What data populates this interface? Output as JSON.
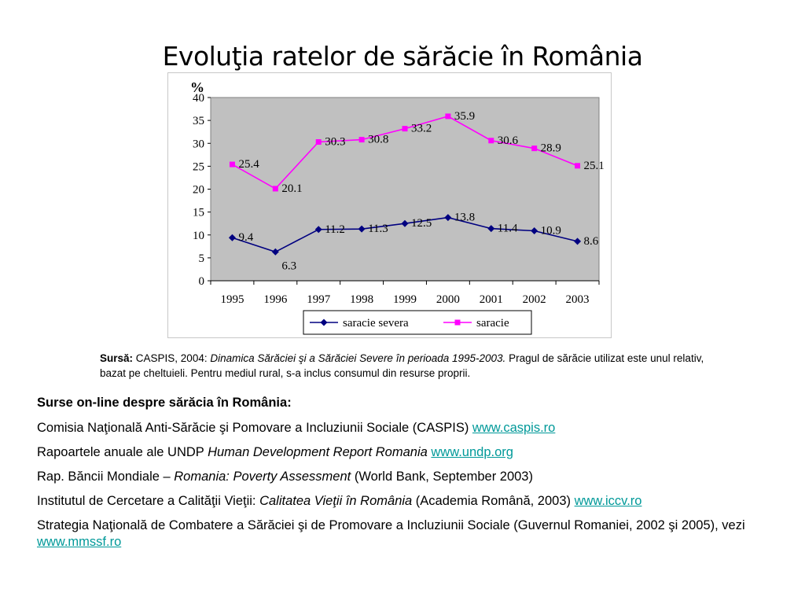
{
  "page": {
    "title": "Evoluţia ratelor de sărăcie în România"
  },
  "chart_data": {
    "type": "line",
    "title": "",
    "ylabel": "%",
    "xlabel": "",
    "categories": [
      "1995",
      "1996",
      "1997",
      "1998",
      "1999",
      "2000",
      "2001",
      "2002",
      "2003"
    ],
    "ylim": [
      0,
      40
    ],
    "yticks": [
      0,
      5,
      10,
      15,
      20,
      25,
      30,
      35,
      40
    ],
    "grid": false,
    "legend_position": "bottom",
    "plot_background": "#c0c0c0",
    "series": [
      {
        "name": "saracie severa",
        "color": "#000080",
        "marker": "diamond",
        "values": [
          9.4,
          6.3,
          11.2,
          11.3,
          12.5,
          13.8,
          11.4,
          10.9,
          8.6
        ],
        "labels": [
          "9.4",
          "6.3",
          "11.2",
          "11.3",
          "12.5",
          "13.8",
          "11.4",
          "10.9",
          "8.6"
        ]
      },
      {
        "name": "saracie",
        "color": "#ff00ff",
        "marker": "square",
        "values": [
          25.4,
          20.1,
          30.3,
          30.8,
          33.2,
          35.9,
          30.6,
          28.9,
          25.1
        ],
        "labels": [
          "25.4",
          "20.1",
          "30.3",
          "30.8",
          "33.2",
          "35.9",
          "30.6",
          "28.9",
          "25.1"
        ]
      }
    ]
  },
  "source": {
    "label": "Sursă:",
    "prefix": " CASPIS, 2004: ",
    "italic": "Dinamica Sărăciei şi a Sărăciei Severe în perioada 1995-2003.",
    "rest": " Pragul de sărăcie utilizat este unul relativ, bazat pe cheltuieli. Pentru mediul rural, s-a inclus consumul din resurse proprii."
  },
  "links": {
    "heading": "Surse on-line despre sărăcia în România:",
    "items": [
      {
        "pre": "Comisia Naţională Anti-Sărăcie şi Pomovare a Incluziunii Sociale (CASPIS) ",
        "italic": "",
        "post": "",
        "link": "www.caspis.ro"
      },
      {
        "pre": "Rapoartele anuale ale UNDP ",
        "italic": "Human Development Report Romania",
        "post": " ",
        "link": "www.undp.org"
      },
      {
        "pre": "Rap. Băncii Mondiale – ",
        "italic": "Romania: Poverty Assessment",
        "post": " (World Bank, September 2003)",
        "link": ""
      },
      {
        "pre": "Institutul de Cercetare a Calităţii Vieţii: ",
        "italic": "Calitatea Vieţii în România",
        "post": " (Academia Română, 2003) ",
        "link": "www.iccv.ro"
      },
      {
        "pre": "Strategia Naţională de Combatere a Sărăciei şi de Promovare a Incluziunii Sociale (Guvernul Romaniei, 2002 şi 2005), vezi ",
        "italic": "",
        "post": "",
        "link": "www.mmssf.ro"
      }
    ]
  }
}
